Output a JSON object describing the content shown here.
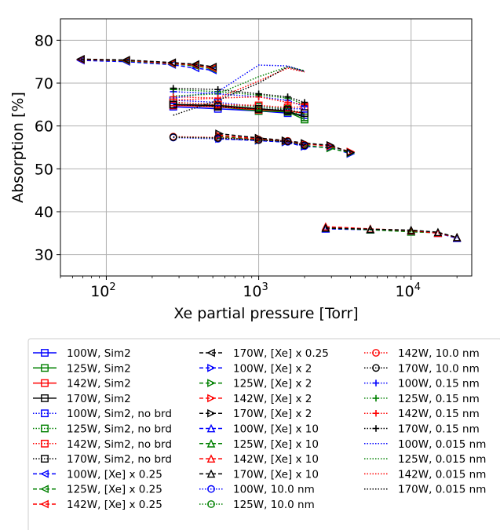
{
  "chart_data": {
    "type": "line",
    "xlabel": "Xe partial pressure [Torr]",
    "ylabel": "Absorption [%]",
    "xscale": "log",
    "xlim": [
      50,
      25000
    ],
    "ylim": [
      25,
      85
    ],
    "xticks": [
      {
        "value": 100,
        "base": "10",
        "exp": "2"
      },
      {
        "value": 1000,
        "base": "10",
        "exp": "3"
      },
      {
        "value": 10000,
        "base": "10",
        "exp": "4"
      }
    ],
    "yticks": [
      30,
      40,
      50,
      60,
      70,
      80
    ],
    "grid": true,
    "legend_position": "below",
    "colors": {
      "blue": "#0000ff",
      "green": "#008000",
      "red": "#ff0000",
      "black": "#000000"
    },
    "series": [
      {
        "name": "100W, Sim2",
        "color": "#0000ff",
        "dash": "solid",
        "marker": "square",
        "x": [
          275,
          540,
          1000,
          1550,
          2000
        ],
        "y": [
          64.5,
          64.0,
          63.5,
          63.0,
          62.5
        ]
      },
      {
        "name": "125W, Sim2",
        "color": "#008000",
        "dash": "solid",
        "marker": "square",
        "x": [
          275,
          540,
          1000,
          1550,
          2000
        ],
        "y": [
          65.0,
          64.5,
          63.5,
          63.3,
          61.5
        ]
      },
      {
        "name": "142W, Sim2",
        "color": "#ff0000",
        "dash": "solid",
        "marker": "square",
        "x": [
          275,
          540,
          1000,
          1550,
          2000
        ],
        "y": [
          64.8,
          64.5,
          63.8,
          63.5,
          63.0
        ]
      },
      {
        "name": "170W, Sim2",
        "color": "#000000",
        "dash": "solid",
        "marker": "square",
        "x": [
          275,
          540,
          1000,
          1550,
          2000
        ],
        "y": [
          65.0,
          64.8,
          64.0,
          63.5,
          62.0
        ]
      },
      {
        "name": "100W, Sim2, no brd",
        "color": "#0000ff",
        "dash": "dotted",
        "marker": "square",
        "x": [
          275,
          540,
          1000,
          1550,
          2000
        ],
        "y": [
          66.0,
          65.5,
          64.5,
          64.0,
          64.0
        ]
      },
      {
        "name": "125W, Sim2, no brd",
        "color": "#008000",
        "dash": "dotted",
        "marker": "square",
        "x": [
          275,
          540,
          1000,
          1550,
          2000
        ],
        "y": [
          65.5,
          65.0,
          64.5,
          64.0,
          62.0
        ]
      },
      {
        "name": "142W, Sim2, no brd",
        "color": "#ff0000",
        "dash": "dotted",
        "marker": "square",
        "x": [
          275,
          540,
          1000,
          1550,
          2000
        ],
        "y": [
          65.5,
          65.0,
          64.8,
          64.3,
          64.5
        ]
      },
      {
        "name": "170W, Sim2, no brd",
        "color": "#000000",
        "dash": "dotted",
        "marker": "square",
        "x": [
          275,
          540,
          1000,
          1550,
          2000
        ],
        "y": [
          65.0,
          64.5,
          64.0,
          63.8,
          63.0
        ]
      },
      {
        "name": "100W, [Xe] x 0.25",
        "color": "#0000ff",
        "dash": "dashed",
        "marker": "triangle-left",
        "x": [
          68,
          135,
          270,
          385,
          500
        ],
        "y": [
          75.3,
          75.0,
          74.3,
          73.5,
          73.0
        ]
      },
      {
        "name": "125W, [Xe] x 0.25",
        "color": "#008000",
        "dash": "dashed",
        "marker": "triangle-left",
        "x": [
          68,
          135,
          270,
          385,
          500
        ],
        "y": [
          75.5,
          75.2,
          74.5,
          74.0,
          73.3
        ]
      },
      {
        "name": "142W, [Xe] x 0.25",
        "color": "#ff0000",
        "dash": "dashed",
        "marker": "triangle-left",
        "x": [
          68,
          135,
          270,
          385,
          500
        ],
        "y": [
          75.5,
          75.3,
          74.6,
          74.2,
          73.5
        ]
      },
      {
        "name": "170W, [Xe] x 0.25",
        "color": "#000000",
        "dash": "dashed",
        "marker": "triangle-left",
        "x": [
          68,
          135,
          270,
          385,
          500
        ],
        "y": [
          75.6,
          75.4,
          74.8,
          74.4,
          73.8
        ]
      },
      {
        "name": "100W, [Xe] x 2",
        "color": "#0000ff",
        "dash": "dashed",
        "marker": "triangle-right",
        "x": [
          550,
          1000,
          1500,
          2000,
          2950,
          4000
        ],
        "y": [
          57.0,
          56.6,
          56.2,
          55.2,
          55.0,
          53.5
        ]
      },
      {
        "name": "125W, [Xe] x 2",
        "color": "#008000",
        "dash": "dashed",
        "marker": "triangle-right",
        "x": [
          550,
          1000,
          1500,
          2000,
          2950,
          4000
        ],
        "y": [
          57.5,
          56.8,
          56.4,
          55.5,
          54.8,
          53.7
        ]
      },
      {
        "name": "142W, [Xe] x 2",
        "color": "#ff0000",
        "dash": "dashed",
        "marker": "triangle-right",
        "x": [
          550,
          1000,
          1500,
          2000,
          2950,
          4000
        ],
        "y": [
          57.8,
          57.0,
          56.5,
          55.8,
          55.3,
          54.0
        ]
      },
      {
        "name": "170W, [Xe] x 2",
        "color": "#000000",
        "dash": "dashed",
        "marker": "triangle-right",
        "x": [
          550,
          1000,
          1500,
          2000,
          2950,
          4000
        ],
        "y": [
          58.2,
          57.2,
          56.6,
          56.0,
          55.5,
          53.8
        ]
      },
      {
        "name": "100W, [Xe] x 10",
        "color": "#0000ff",
        "dash": "dashed",
        "marker": "triangle-up",
        "x": [
          2750,
          5400,
          10000,
          15000,
          20000
        ],
        "y": [
          36.0,
          35.8,
          35.5,
          35.0,
          33.8
        ]
      },
      {
        "name": "125W, [Xe] x 10",
        "color": "#008000",
        "dash": "dashed",
        "marker": "triangle-up",
        "x": [
          2750,
          5400,
          10000,
          15000,
          20000
        ],
        "y": [
          36.2,
          35.8,
          35.3,
          35.1,
          34.0
        ]
      },
      {
        "name": "142W, [Xe] x 10",
        "color": "#ff0000",
        "dash": "dashed",
        "marker": "triangle-up",
        "x": [
          2750,
          5400,
          10000,
          15000,
          20000
        ],
        "y": [
          36.5,
          36.0,
          35.6,
          35.0,
          34.0
        ]
      },
      {
        "name": "170W, [Xe] x 10",
        "color": "#000000",
        "dash": "dashed",
        "marker": "triangle-up",
        "x": [
          2750,
          5400,
          10000,
          15000,
          20000
        ],
        "y": [
          36.2,
          35.9,
          35.7,
          35.2,
          34.0
        ]
      },
      {
        "name": "100W, 10.0 nm",
        "color": "#0000ff",
        "dash": "dotted",
        "marker": "circle",
        "x": [
          275,
          540,
          1000,
          1550,
          2000
        ],
        "y": [
          57.3,
          57.0,
          56.7,
          56.3,
          55.3
        ]
      },
      {
        "name": "125W, 10.0 nm",
        "color": "#008000",
        "dash": "dotted",
        "marker": "circle",
        "x": [
          275,
          540,
          1000,
          1550,
          2000
        ],
        "y": [
          57.4,
          57.2,
          56.8,
          56.5,
          55.5
        ]
      },
      {
        "name": "142W, 10.0 nm",
        "color": "#ff0000",
        "dash": "dotted",
        "marker": "circle",
        "x": [
          275,
          540,
          1000,
          1550,
          2000
        ],
        "y": [
          57.5,
          57.3,
          56.8,
          56.5,
          55.6
        ]
      },
      {
        "name": "170W, 10.0 nm",
        "color": "#000000",
        "dash": "dotted",
        "marker": "circle",
        "x": [
          275,
          540,
          1000,
          1550,
          2000
        ],
        "y": [
          57.4,
          57.2,
          56.7,
          56.4,
          55.5
        ]
      },
      {
        "name": "100W, 0.15 nm",
        "color": "#0000ff",
        "dash": "dotted",
        "marker": "plus",
        "x": [
          275,
          540,
          1000,
          1550,
          2000
        ],
        "y": [
          68.0,
          67.5,
          66.8,
          66.0,
          64.5
        ]
      },
      {
        "name": "125W, 0.15 nm",
        "color": "#008000",
        "dash": "dotted",
        "marker": "plus",
        "x": [
          275,
          540,
          1000,
          1550,
          2000
        ],
        "y": [
          68.5,
          68.0,
          67.2,
          66.5,
          65.0
        ]
      },
      {
        "name": "142W, 0.15 nm",
        "color": "#ff0000",
        "dash": "dotted",
        "marker": "plus",
        "x": [
          275,
          540,
          1000,
          1550,
          2000
        ],
        "y": [
          66.8,
          66.5,
          66.8,
          65.5,
          65.0
        ]
      },
      {
        "name": "170W, 0.15 nm",
        "color": "#000000",
        "dash": "dotted",
        "marker": "plus",
        "x": [
          275,
          540,
          1000,
          1550,
          2000
        ],
        "y": [
          68.8,
          68.5,
          67.5,
          66.8,
          65.5
        ]
      },
      {
        "name": "100W, 0.015 nm",
        "color": "#0000ff",
        "dash": "dotted",
        "marker": "none",
        "x": [
          275,
          540,
          1000,
          1550,
          2000
        ],
        "y": [
          66.5,
          68.0,
          74.2,
          74.0,
          72.8
        ]
      },
      {
        "name": "125W, 0.015 nm",
        "color": "#008000",
        "dash": "dotted",
        "marker": "none",
        "x": [
          275,
          540,
          1000,
          1550,
          2000
        ],
        "y": [
          67.0,
          67.5,
          71.5,
          73.8,
          72.9
        ]
      },
      {
        "name": "142W, 0.015 nm",
        "color": "#ff0000",
        "dash": "dotted",
        "marker": "none",
        "x": [
          275,
          540,
          1000,
          1550,
          2000
        ],
        "y": [
          66.0,
          66.5,
          70.5,
          73.5,
          72.6
        ]
      },
      {
        "name": "170W, 0.015 nm",
        "color": "#000000",
        "dash": "dotted",
        "marker": "none",
        "x": [
          275,
          540,
          1000,
          1550,
          2000
        ],
        "y": [
          62.5,
          66.0,
          70.0,
          73.8,
          72.7
        ]
      }
    ]
  }
}
